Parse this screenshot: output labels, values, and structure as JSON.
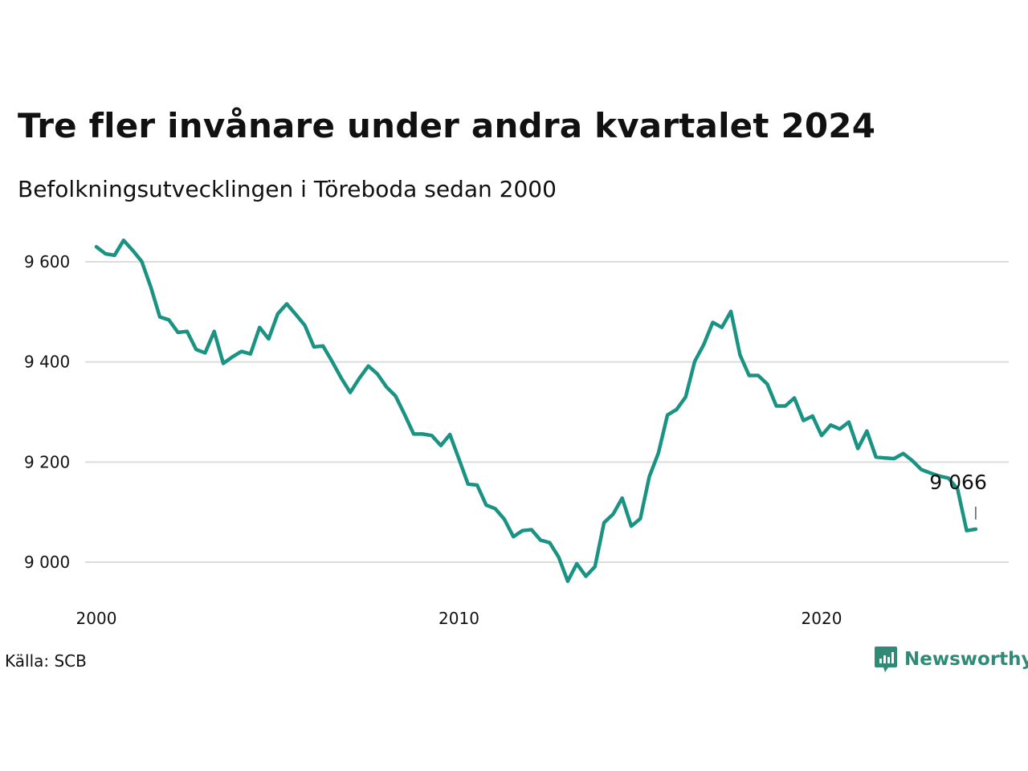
{
  "title": "Tre fler invånare under andra kvartalet 2024",
  "subtitle": "Befolkningsutvecklingen i Töreboda sedan 2000",
  "source": "Källa: SCB",
  "brand": {
    "name": "Newsworthy",
    "icon": "newsworthy-logo-icon",
    "color": "#2f8a78"
  },
  "chart_data": {
    "type": "line",
    "title": "Tre fler invånare under andra kvartalet 2024",
    "subtitle": "Befolkningsutvecklingen i Töreboda sedan 2000",
    "xlabel": "",
    "ylabel": "",
    "xlim": [
      2000,
      2025
    ],
    "ylim": [
      8920,
      9660
    ],
    "grid": true,
    "line_color": "#1a9383",
    "x_ticks": [
      {
        "value": 2000,
        "label": "2000"
      },
      {
        "value": 2010,
        "label": "2010"
      },
      {
        "value": 2020,
        "label": "2020"
      }
    ],
    "y_ticks": [
      {
        "value": 9000,
        "label": "9 000"
      },
      {
        "value": 9200,
        "label": "9 200"
      },
      {
        "value": 9400,
        "label": "9 400"
      },
      {
        "value": 9600,
        "label": "9 600"
      }
    ],
    "end_label": "9 066",
    "series": [
      {
        "x": [
          2000.0,
          2000.25,
          2000.5,
          2000.75,
          2001.0,
          2001.25,
          2001.5,
          2001.75,
          2002.0,
          2002.25,
          2002.5,
          2002.75,
          2003.0,
          2003.25,
          2003.5,
          2003.75,
          2004.0,
          2004.25,
          2004.5,
          2004.75,
          2005.0,
          2005.25,
          2005.5,
          2005.75,
          2006.0,
          2006.25,
          2006.5,
          2006.75,
          2007.0,
          2007.25,
          2007.5,
          2007.75,
          2008.0,
          2008.25,
          2008.5,
          2008.75,
          2009.0,
          2009.25,
          2009.5,
          2009.75,
          2010.0,
          2010.25,
          2010.5,
          2010.75,
          2011.0,
          2011.25,
          2011.5,
          2011.75,
          2012.0,
          2012.25,
          2012.5,
          2012.75,
          2013.0,
          2013.25,
          2013.5,
          2013.75,
          2014.0,
          2014.25,
          2014.5,
          2014.75,
          2015.0,
          2015.25,
          2015.5,
          2015.75,
          2016.0,
          2016.25,
          2016.5,
          2016.75,
          2017.0,
          2017.25,
          2017.5,
          2017.75,
          2018.0,
          2018.25,
          2018.5,
          2018.75,
          2019.0,
          2019.25,
          2019.5,
          2019.75,
          2020.0,
          2020.25,
          2020.5,
          2020.75,
          2021.0,
          2021.25,
          2021.5,
          2021.75,
          2022.0,
          2022.25,
          2022.5,
          2022.75,
          2023.0,
          2023.25,
          2023.5,
          2023.75,
          2024.0,
          2024.25
        ],
        "values": [
          9630,
          9616,
          9613,
          9643,
          9623,
          9601,
          9550,
          9490,
          9484,
          9459,
          9461,
          9425,
          9418,
          9461,
          9397,
          9410,
          9421,
          9416,
          9469,
          9446,
          9496,
          9516,
          9495,
          9473,
          9430,
          9432,
          9401,
          9368,
          9339,
          9367,
          9392,
          9376,
          9350,
          9332,
          9295,
          9256,
          9256,
          9253,
          9233,
          9255,
          9206,
          9156,
          9154,
          9114,
          9107,
          9086,
          9051,
          9063,
          9065,
          9044,
          9039,
          9010,
          8962,
          8997,
          8972,
          8991,
          9079,
          9096,
          9128,
          9072,
          9087,
          9171,
          9218,
          9294,
          9305,
          9330,
          9401,
          9435,
          9479,
          9469,
          9501,
          9414,
          9373,
          9373,
          9356,
          9312,
          9312,
          9328,
          9283,
          9292,
          9253,
          9274,
          9266,
          9280,
          9227,
          9262,
          9210,
          9208,
          9207,
          9217,
          9203,
          9185,
          9178,
          9172,
          9168,
          9146,
          9063,
          9066
        ]
      }
    ]
  }
}
